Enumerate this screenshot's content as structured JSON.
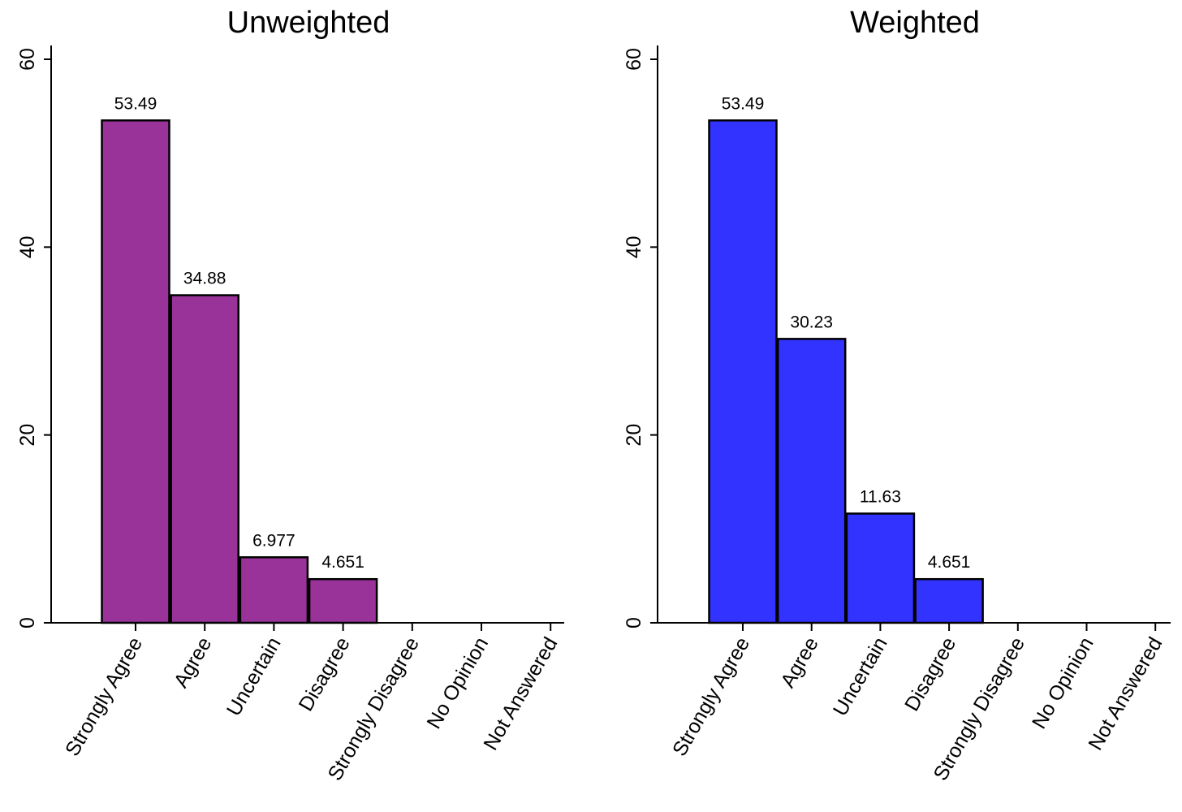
{
  "chart_data": [
    {
      "type": "bar",
      "title": "Unweighted",
      "xlabel": "",
      "ylabel": "",
      "categories": [
        "Strongly Agree",
        "Agree",
        "Uncertain",
        "Disagree",
        "Strongly Disagree",
        "No Opinion",
        "Not Answered"
      ],
      "values": [
        53.49,
        34.88,
        6.977,
        4.651,
        0,
        0,
        0
      ],
      "data_labels": [
        "53.49",
        "34.88",
        "6.977",
        "4.651",
        null,
        null,
        null
      ],
      "ylim": [
        0,
        60
      ],
      "yticks": [
        0,
        20,
        40,
        60
      ],
      "bar_color": "#993399",
      "grid": false,
      "legend": "none"
    },
    {
      "type": "bar",
      "title": "Weighted",
      "xlabel": "",
      "ylabel": "",
      "categories": [
        "Strongly Agree",
        "Agree",
        "Uncertain",
        "Disagree",
        "Strongly Disagree",
        "No Opinion",
        "Not Answered"
      ],
      "values": [
        53.49,
        30.23,
        11.63,
        4.651,
        0,
        0,
        0
      ],
      "data_labels": [
        "53.49",
        "30.23",
        "11.63",
        "4.651",
        null,
        null,
        null
      ],
      "ylim": [
        0,
        60
      ],
      "yticks": [
        0,
        20,
        40,
        60
      ],
      "bar_color": "#3333FF",
      "grid": false,
      "legend": "none"
    }
  ]
}
